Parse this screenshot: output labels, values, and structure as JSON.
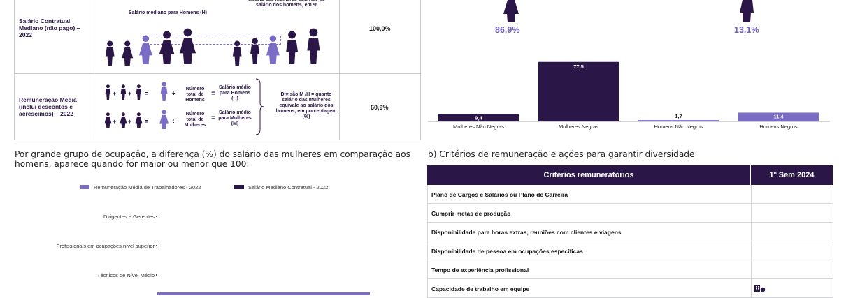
{
  "salary_table": {
    "row1": {
      "label": "Salário Contratual Mediano (não pago) – 2022",
      "median_men_label": "Salário mediano para Homens (H)",
      "brace_note": "salário das mulheres equivale ao salário dos homens, em %",
      "value": "100,0%"
    },
    "row2": {
      "label": "Remuneração Média (inclui descontos e acréscimos) – 2022",
      "men_count_label": "Número total de Homens",
      "women_count_label": "Número total de Mulheres",
      "avg_men_label": "Salário médio para Homens (H)",
      "avg_women_label": "Salário médio para Mulheres (M)",
      "division_note": "Divisão M /H = quanto salário das mulheres equivale ao salário dos homens, em porcentagem (%)",
      "value": "60,9%"
    }
  },
  "top_right": {
    "women_pct": "86,9%",
    "men_pct": "13,1%"
  },
  "chart_data": [
    {
      "type": "bar",
      "categories": [
        "Mulheres Não Negras",
        "Mulheres Negras",
        "Homens Não Negros",
        "Homens Negros"
      ],
      "values": [
        9.4,
        77.5,
        1.7,
        11.4
      ],
      "value_labels": [
        "9,4",
        "77,5",
        "1,7",
        "11,4"
      ],
      "colors": [
        "#2b1747",
        "#2b1747",
        "#7b6cc6",
        "#7b6cc6"
      ],
      "ylim": [
        0,
        80
      ]
    },
    {
      "type": "bar",
      "orientation": "horizontal",
      "series": [
        {
          "name": "Remuneração Média de Trabalhadores - 2022",
          "color": "#7b6cc6"
        },
        {
          "name": "Salário Mediano Contratual - 2022",
          "color": "#2b1747"
        }
      ],
      "categories": [
        "Dirigentes e Gerentes",
        "Profissionais em ocupações nível superior",
        "Técnicos de Nível Médio"
      ],
      "legend": "top"
    }
  ],
  "occupation_text": "Por grande grupo de ocupação, a diferença (%) do salário das mulheres em comparação aos homens, aparece quando for maior ou menor que 100:",
  "criteria": {
    "heading": "b) Critérios de remuneração e ações para garantir diversidade",
    "col1": "Critérios remuneratórios",
    "col2": "1º Sem 2024",
    "rows": [
      "Plano de Cargos e Salários ou Plano de Carreira",
      "Cumprir metas de produção",
      "Disponibilidade para horas extras, reuniões com clientes e viagens",
      "Disponibilidade de pessoa em ocupações específicas",
      "Tempo de experiência profissional",
      "Capacidade de trabalho em equipe"
    ]
  },
  "formula": {
    "plus": "+",
    "equals": "=",
    "divide": "÷"
  }
}
